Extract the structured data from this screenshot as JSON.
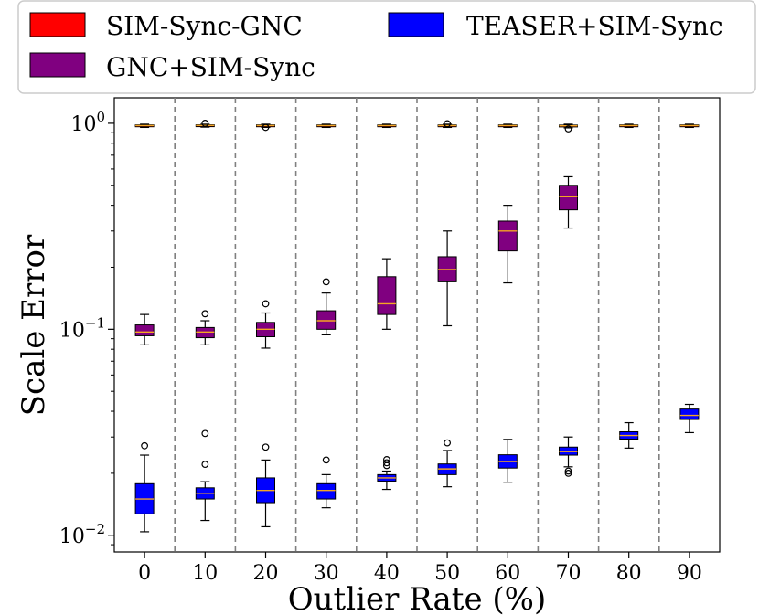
{
  "chart_data": {
    "type": "boxplot",
    "title": "",
    "xlabel": "Outlier Rate (%)",
    "ylabel": "Scale Error",
    "yscale": "log",
    "ylim": [
      0.0083,
      1.33
    ],
    "y_ticks": [
      {
        "value": 1,
        "base": "10",
        "exp": "0"
      },
      {
        "value": 0.1,
        "base": "10",
        "exp": "−1"
      },
      {
        "value": 0.01,
        "base": "10",
        "exp": "−2"
      }
    ],
    "categories": [
      "0",
      "10",
      "20",
      "30",
      "40",
      "50",
      "60",
      "70",
      "80",
      "90"
    ],
    "median_color": "#f5a623",
    "separator_color": "#808080",
    "legend": {
      "location": "top",
      "entries": [
        {
          "name": "SIM-Sync-GNC",
          "color": "#ff0000"
        },
        {
          "name": "GNC+SIM-Sync",
          "color": "#800080"
        },
        {
          "name": "TEASER+SIM-Sync",
          "color": "#0000ff"
        }
      ]
    },
    "series": [
      {
        "name": "SIM-Sync-GNC",
        "color": "#ff0000",
        "boxes": [
          {
            "whislo": 0.955,
            "q1": 0.968,
            "med": 0.975,
            "q3": 0.982,
            "whishi": 0.99,
            "fliers": []
          },
          {
            "whislo": 0.958,
            "q1": 0.97,
            "med": 0.976,
            "q3": 0.983,
            "whishi": 0.99,
            "fliers": [
              1.0
            ]
          },
          {
            "whislo": 0.955,
            "q1": 0.968,
            "med": 0.975,
            "q3": 0.982,
            "whishi": 0.99,
            "fliers": [
              0.955
            ]
          },
          {
            "whislo": 0.955,
            "q1": 0.968,
            "med": 0.975,
            "q3": 0.982,
            "whishi": 0.99,
            "fliers": []
          },
          {
            "whislo": 0.955,
            "q1": 0.968,
            "med": 0.975,
            "q3": 0.982,
            "whishi": 0.99,
            "fliers": []
          },
          {
            "whislo": 0.955,
            "q1": 0.968,
            "med": 0.975,
            "q3": 0.982,
            "whishi": 0.99,
            "fliers": [
              0.995
            ]
          },
          {
            "whislo": 0.955,
            "q1": 0.968,
            "med": 0.975,
            "q3": 0.982,
            "whishi": 0.99,
            "fliers": []
          },
          {
            "whislo": 0.95,
            "q1": 0.965,
            "med": 0.972,
            "q3": 0.98,
            "whishi": 0.99,
            "fliers": [
              0.94
            ]
          },
          {
            "whislo": 0.955,
            "q1": 0.968,
            "med": 0.975,
            "q3": 0.982,
            "whishi": 0.99,
            "fliers": []
          },
          {
            "whislo": 0.955,
            "q1": 0.968,
            "med": 0.975,
            "q3": 0.982,
            "whishi": 0.99,
            "fliers": []
          }
        ]
      },
      {
        "name": "GNC+SIM-Sync",
        "color": "#800080",
        "boxes": [
          {
            "whislo": 0.084,
            "q1": 0.093,
            "med": 0.097,
            "q3": 0.105,
            "whishi": 0.118,
            "fliers": []
          },
          {
            "whislo": 0.084,
            "q1": 0.091,
            "med": 0.097,
            "q3": 0.102,
            "whishi": 0.11,
            "fliers": [
              0.119
            ]
          },
          {
            "whislo": 0.081,
            "q1": 0.092,
            "med": 0.1,
            "q3": 0.108,
            "whishi": 0.12,
            "fliers": [
              0.133
            ]
          },
          {
            "whislo": 0.094,
            "q1": 0.1,
            "med": 0.11,
            "q3": 0.123,
            "whishi": 0.15,
            "fliers": [
              0.17
            ]
          },
          {
            "whislo": 0.1,
            "q1": 0.118,
            "med": 0.133,
            "q3": 0.18,
            "whishi": 0.22,
            "fliers": []
          },
          {
            "whislo": 0.104,
            "q1": 0.17,
            "med": 0.195,
            "q3": 0.225,
            "whishi": 0.3,
            "fliers": []
          },
          {
            "whislo": 0.168,
            "q1": 0.24,
            "med": 0.3,
            "q3": 0.335,
            "whishi": 0.4,
            "fliers": []
          },
          {
            "whislo": 0.31,
            "q1": 0.38,
            "med": 0.44,
            "q3": 0.5,
            "whishi": 0.55,
            "fliers": []
          }
        ]
      },
      {
        "name": "TEASER+SIM-Sync",
        "color": "#0000ff",
        "boxes": [
          {
            "whislo": 0.0104,
            "q1": 0.0127,
            "med": 0.015,
            "q3": 0.0178,
            "whishi": 0.0245,
            "fliers": [
              0.0272
            ]
          },
          {
            "whislo": 0.0118,
            "q1": 0.015,
            "med": 0.016,
            "q3": 0.017,
            "whishi": 0.0182,
            "fliers": [
              0.0221,
              0.0312
            ]
          },
          {
            "whislo": 0.011,
            "q1": 0.0144,
            "med": 0.0165,
            "q3": 0.019,
            "whishi": 0.0232,
            "fliers": [
              0.0268
            ]
          },
          {
            "whislo": 0.0136,
            "q1": 0.015,
            "med": 0.0165,
            "q3": 0.0178,
            "whishi": 0.0197,
            "fliers": [
              0.0232
            ]
          },
          {
            "whislo": 0.0167,
            "q1": 0.0183,
            "med": 0.019,
            "q3": 0.0197,
            "whishi": 0.0205,
            "fliers": [
              0.0218,
              0.0225,
              0.0233
            ]
          },
          {
            "whislo": 0.0172,
            "q1": 0.0197,
            "med": 0.021,
            "q3": 0.0222,
            "whishi": 0.0258,
            "fliers": [
              0.0281
            ]
          },
          {
            "whislo": 0.0181,
            "q1": 0.0212,
            "med": 0.0228,
            "q3": 0.0246,
            "whishi": 0.0292,
            "fliers": []
          },
          {
            "whislo": 0.0215,
            "q1": 0.0245,
            "med": 0.0255,
            "q3": 0.0268,
            "whishi": 0.03,
            "fliers": [
              0.02,
              0.0205
            ]
          },
          {
            "whislo": 0.0265,
            "q1": 0.0293,
            "med": 0.0305,
            "q3": 0.0318,
            "whishi": 0.0352,
            "fliers": []
          },
          {
            "whislo": 0.0315,
            "q1": 0.0365,
            "med": 0.0382,
            "q3": 0.041,
            "whishi": 0.0432,
            "fliers": []
          }
        ]
      }
    ]
  }
}
